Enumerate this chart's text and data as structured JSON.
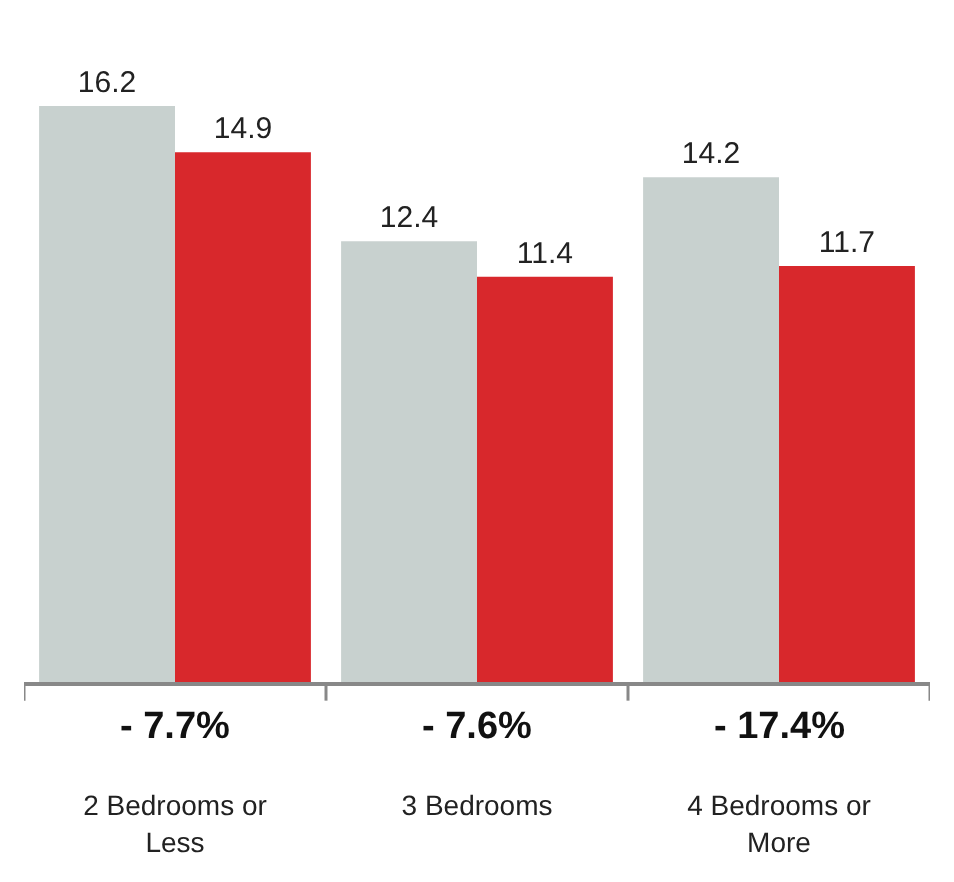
{
  "chart_data": {
    "type": "bar",
    "categories": [
      "2 Bedrooms or Less",
      "3 Bedrooms",
      "4 Bedrooms or More"
    ],
    "series": [
      {
        "color": "#c8d1cf",
        "values": [
          16.2,
          12.4,
          14.2
        ]
      },
      {
        "color": "#d8282c",
        "values": [
          14.9,
          11.4,
          11.7
        ]
      }
    ],
    "data_labels": true,
    "annotations": [
      "- 7.7%",
      "- 7.6%",
      "- 17.4%"
    ]
  }
}
